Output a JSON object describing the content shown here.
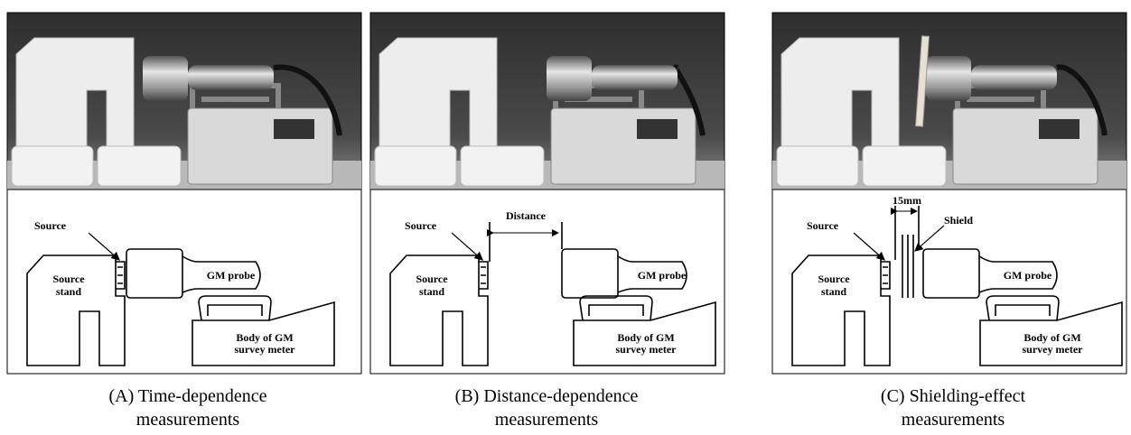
{
  "panels": [
    {
      "caption": [
        "(A) Time-dependence",
        "measurements"
      ],
      "source": "Source",
      "stand": [
        "Source",
        "stand"
      ],
      "probe": "GM probe",
      "body": [
        "Body of GM",
        "survey meter"
      ]
    },
    {
      "caption": [
        "(B) Distance-dependence",
        "measurements"
      ],
      "source": "Source",
      "stand": [
        "Source",
        "stand"
      ],
      "probe": "GM probe",
      "body": [
        "Body of GM",
        "survey meter"
      ],
      "distance": "Distance"
    },
    {
      "caption": [
        "(C) Shielding-effect",
        "measurements"
      ],
      "source": "Source",
      "stand": [
        "Source",
        "stand"
      ],
      "probe": "GM probe",
      "body": [
        "Body of GM",
        "survey meter"
      ],
      "gap": "15mm",
      "shield": "Shield"
    }
  ]
}
